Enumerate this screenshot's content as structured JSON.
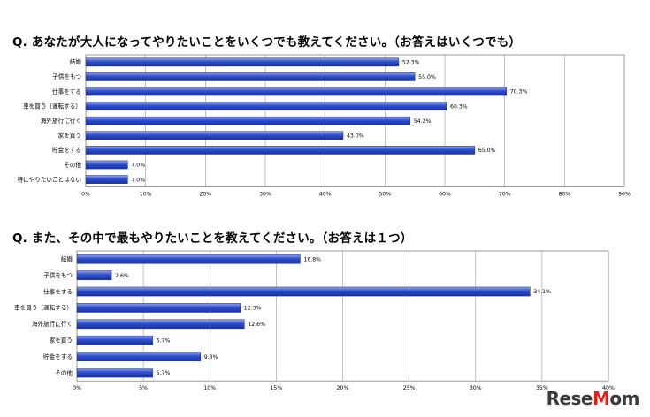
{
  "charts": [
    {
      "question": "Q. あなたが大人になってやりたいことをいくつでも教えてください。（お答えはいくつでも）",
      "chart_data": {
        "type": "bar",
        "orientation": "horizontal",
        "categories": [
          "結婚",
          "子供をもつ",
          "仕事をする",
          "車を買う（運転する）",
          "海外旅行に行く",
          "家を買う",
          "貯金をする",
          "その他",
          "特にやりたいことはない"
        ],
        "values": [
          52.3,
          55.0,
          70.3,
          60.3,
          54.2,
          43.0,
          65.0,
          7.0,
          7.0
        ],
        "value_labels": [
          "52.3%",
          "55.0%",
          "70.3%",
          "60.3%",
          "54.2%",
          "43.0%",
          "65.0%",
          "7.0%",
          "7.0%"
        ],
        "xlim": [
          0,
          90
        ],
        "xticks": [
          0,
          10,
          20,
          30,
          40,
          50,
          60,
          70,
          80,
          90
        ],
        "xtick_labels": [
          "0%",
          "10%",
          "20%",
          "30%",
          "40%",
          "50%",
          "60%",
          "70%",
          "80%",
          "90%"
        ],
        "grid": true,
        "bar_color": "#2e4fcf"
      }
    },
    {
      "question": "Q. また、その中で最もやりたいことを教えてください。（お答えは１つ）",
      "chart_data": {
        "type": "bar",
        "orientation": "horizontal",
        "categories": [
          "結婚",
          "子供をもつ",
          "仕事をする",
          "車を買う（運転する）",
          "海外旅行に行く",
          "家を買う",
          "貯金をする",
          "その他"
        ],
        "values": [
          16.8,
          2.6,
          34.1,
          12.3,
          12.6,
          5.7,
          9.3,
          5.7
        ],
        "value_labels": [
          "16.8%",
          "2.6%",
          "34.1%",
          "12.3%",
          "12.6%",
          "5.7%",
          "9.3%",
          "5.7%"
        ],
        "xlim": [
          0,
          40
        ],
        "xticks": [
          0,
          5,
          10,
          15,
          20,
          25,
          30,
          35,
          40
        ],
        "xtick_labels": [
          "0%",
          "5%",
          "10%",
          "15%",
          "20%",
          "25%",
          "30%",
          "35%",
          "40%"
        ],
        "grid": true,
        "bar_color": "#2e4fcf"
      }
    }
  ],
  "logo": {
    "text_main": "Rese",
    "text_accent": "M",
    "text_end": "om"
  }
}
